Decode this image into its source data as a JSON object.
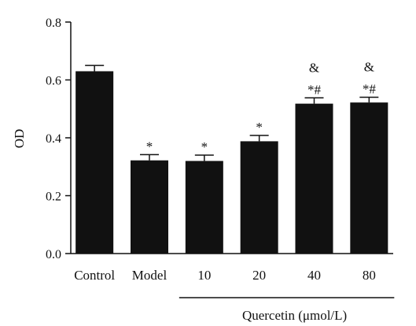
{
  "chart_data": {
    "type": "bar",
    "ylabel": "OD",
    "ylim": [
      0,
      0.8
    ],
    "y_ticks": [
      "0.0",
      "0.2",
      "0.4",
      "0.6",
      "0.8"
    ],
    "categories": [
      "Control",
      "Model",
      "10",
      "20",
      "40",
      "80"
    ],
    "values": [
      0.63,
      0.322,
      0.32,
      0.388,
      0.518,
      0.522
    ],
    "errors": [
      0.02,
      0.02,
      0.02,
      0.02,
      0.02,
      0.018
    ],
    "annotations": [
      {
        "category": "Model",
        "lines": [
          "*"
        ]
      },
      {
        "category": "10",
        "lines": [
          "*"
        ]
      },
      {
        "category": "20",
        "lines": [
          "*"
        ]
      },
      {
        "category": "40",
        "lines": [
          "&",
          "*#"
        ]
      },
      {
        "category": "80",
        "lines": [
          "&",
          "*#"
        ]
      }
    ],
    "group_label": "Quercetin (μmol/L)",
    "group_categories": [
      "10",
      "20",
      "40",
      "80"
    ],
    "bar_color": "#111111"
  }
}
